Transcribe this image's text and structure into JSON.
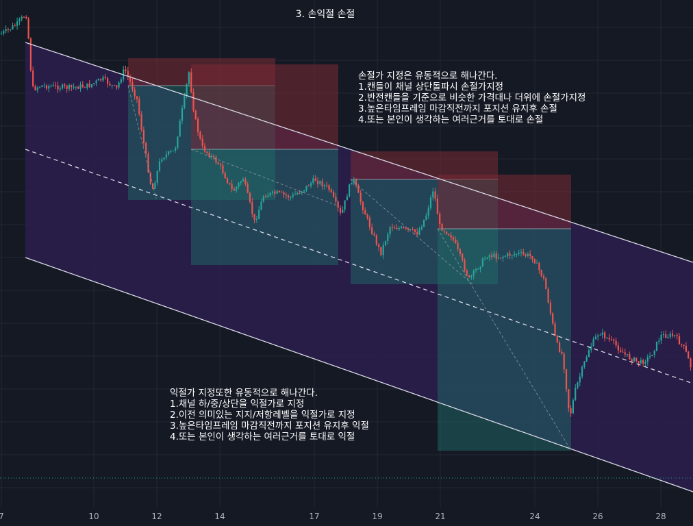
{
  "chart_data": {
    "type": "candlestick",
    "title": "3. 손익절 손절",
    "x_ticks": [
      "7",
      "10",
      "12",
      "14",
      "17",
      "19",
      "21",
      "24",
      "26",
      "28"
    ],
    "grid": true,
    "channel": {
      "upper_line": [
        [
          0,
          62
        ],
        [
          100,
          100
        ]
      ],
      "mid_line": [
        [
          0,
          218
        ],
        [
          100,
          250
        ]
      ],
      "lower_line": [
        [
          0,
          376
        ],
        [
          100,
          402
        ]
      ]
    },
    "annotations": {
      "stop_loss_note": {
        "lines": [
          "손절가 지정은 유동적으로 해나간다.",
          "1.캔들이 채널 상단돌파시 손절가지정",
          "2.반전캔들을 기준으로 비슷한 가격대나 더위에 손절가지정",
          "3.높은타임프레임 마감직전까지 포지션 유지후 손절",
          "4.또는 본인이 생각하는 여러근거를 토대로 손절"
        ]
      },
      "take_profit_note": {
        "lines": [
          "익절가 지정또한 유동적으로 해나간다.",
          "1.채널 하/중/상단을 익절가로 지정",
          "2.이전 의미있는 지지/저항레벨을 익절가로 지정",
          "3.높은타임프레임 마감직전까지 포지션 유지후 익절",
          "4.또는 본인이 생각하는 여러근거를 토대로 익절"
        ]
      }
    },
    "colors": {
      "background": "#151924",
      "channel_fill": "#2a1f4d",
      "up_candle": "#26a69a",
      "down_candle": "#ef5350",
      "stop_zone": "#7a2a35",
      "profit_zone": "#1f6b67"
    }
  }
}
